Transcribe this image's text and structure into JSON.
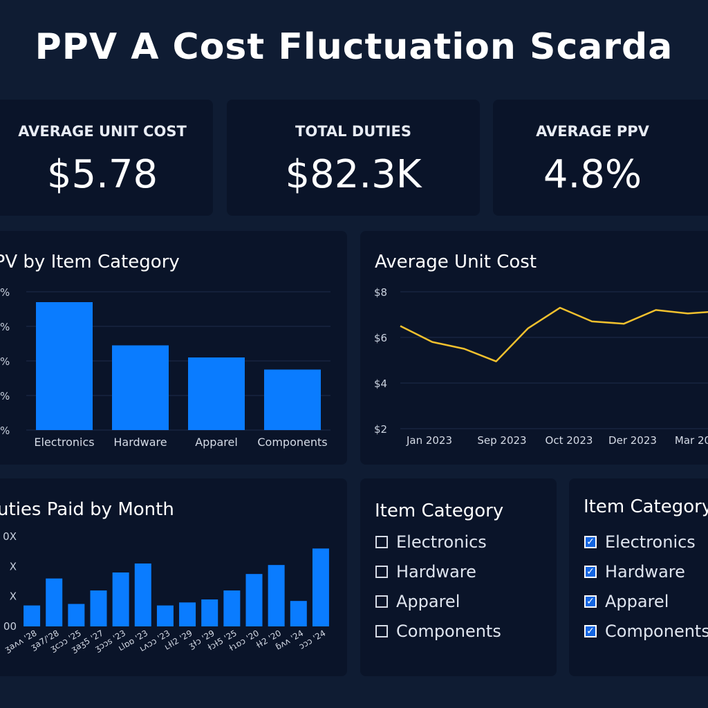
{
  "header": {
    "title": "PPV A Cost Fluctuation Scarda"
  },
  "kpis": [
    {
      "label": "AVERAGE UNIT COST",
      "value": "$5.78"
    },
    {
      "label": "TOTAL DUTIES",
      "value": "$82.3K"
    },
    {
      "label": "AVERAGE PPV",
      "value": "4.8%"
    }
  ],
  "ppv_panel": {
    "title": "PPV by Item Category"
  },
  "unit_cost_panel": {
    "title": "Average Unit Cost"
  },
  "duties_panel": {
    "title": "Duties Paid by Month"
  },
  "slicer_unchecked": {
    "title": "Item Category",
    "items": [
      "Electronics",
      "Hardware",
      "Apparel",
      "Components"
    ]
  },
  "slicer_checked": {
    "title": "Item Category",
    "items": [
      "Electronics",
      "Hardware",
      "Apparel",
      "Components"
    ],
    "check_glyph": "✓"
  },
  "colors": {
    "bar": "#0a7cff",
    "line": "#f2c12e",
    "grid": "#1f2d4a",
    "panel": "#0a1429",
    "background": "#0f1c33"
  },
  "chart_data": [
    {
      "type": "bar",
      "title": "PPV by Item Category",
      "categories": [
        "Electronics",
        "Hardware",
        "Apparel",
        "Components"
      ],
      "values": [
        7.4,
        4.9,
        4.2,
        3.5
      ],
      "ylim": [
        0,
        8
      ],
      "ytick_labels": [
        "%",
        "%",
        "%",
        "%",
        "%"
      ],
      "grid": true
    },
    {
      "type": "line",
      "title": "Average Unit Cost",
      "x_labels": [
        "Jan 2023",
        "Sep 2023",
        "Oct 2023",
        "Der 2023",
        "Mar 20"
      ],
      "values": [
        6.5,
        5.8,
        5.5,
        4.95,
        6.4,
        7.3,
        6.7,
        6.6,
        7.2,
        7.05,
        7.15
      ],
      "ylim": [
        2,
        8
      ],
      "yticks": [
        "$2",
        "$4",
        "$6",
        "$8"
      ],
      "grid": true
    },
    {
      "type": "bar",
      "title": "Duties Paid by Month",
      "categories": [
        "ʒaʌʌ '28",
        "ʒa7/'28",
        "ʒcɔɔ '25",
        "ʒaʒ5 '27",
        "ʒɔɔs '23",
        "ʟlɒɒ '23",
        "ʟʌɔɔ '23",
        "ʟɫl2 '29",
        "ʒɫɔ '29",
        "ɫɔɫ5 '25",
        "ɫɿɒɔ '20",
        "ɫɫ2 '20",
        "ɓʌʌ '24",
        "ɔɔɔ '24"
      ],
      "values": [
        1.4,
        3.2,
        1.5,
        2.4,
        3.6,
        4.2,
        1.4,
        1.6,
        1.8,
        2.4,
        3.5,
        4.1,
        1.7,
        5.2
      ],
      "ylim": [
        0,
        6
      ],
      "yticks": [
        "00",
        "X",
        "X",
        "0X"
      ],
      "grid": false
    }
  ]
}
